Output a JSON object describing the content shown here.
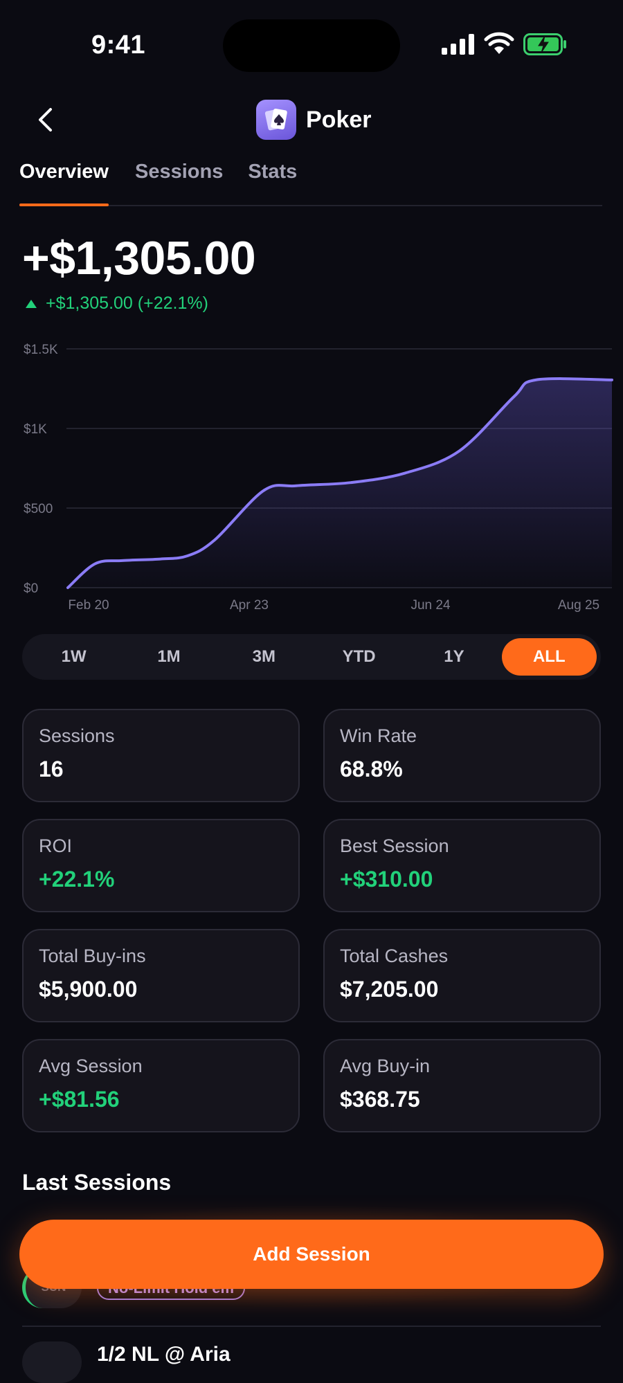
{
  "status_bar": {
    "time": "9:41"
  },
  "header": {
    "title": "Poker",
    "app_icon": "spade-cards-icon"
  },
  "tabs": [
    {
      "label": "Overview",
      "active": true
    },
    {
      "label": "Sessions",
      "active": false
    },
    {
      "label": "Stats",
      "active": false
    }
  ],
  "summary": {
    "total": "+$1,305.00",
    "change": "+$1,305.00 (+22.1%)"
  },
  "chart_data": {
    "type": "area",
    "x_labels": [
      "Feb 20",
      "Apr 23",
      "Jun 24",
      "Aug 25"
    ],
    "y_ticks": [
      "$0",
      "$500",
      "$1K",
      "$1.5K"
    ],
    "ylim": [
      0,
      1500
    ],
    "series": [
      {
        "color": "#8b7cf6",
        "points": [
          [
            0.0,
            0
          ],
          [
            0.05,
            150
          ],
          [
            0.1,
            170
          ],
          [
            0.17,
            180
          ],
          [
            0.22,
            200
          ],
          [
            0.27,
            300
          ],
          [
            0.36,
            610
          ],
          [
            0.42,
            640
          ],
          [
            0.52,
            660
          ],
          [
            0.62,
            720
          ],
          [
            0.72,
            860
          ],
          [
            0.82,
            1200
          ],
          [
            0.86,
            1305
          ],
          [
            1.0,
            1305
          ]
        ]
      }
    ],
    "grid": true
  },
  "ranges": [
    {
      "label": "1W",
      "active": false
    },
    {
      "label": "1M",
      "active": false
    },
    {
      "label": "3M",
      "active": false
    },
    {
      "label": "YTD",
      "active": false
    },
    {
      "label": "1Y",
      "active": false
    },
    {
      "label": "ALL",
      "active": true
    }
  ],
  "stats": [
    {
      "label": "Sessions",
      "value": "16",
      "positive": false
    },
    {
      "label": "Win Rate",
      "value": "68.8%",
      "positive": false
    },
    {
      "label": "ROI",
      "value": "+22.1%",
      "positive": true
    },
    {
      "label": "Best Session",
      "value": "+$310.00",
      "positive": true
    },
    {
      "label": "Total Buy-ins",
      "value": "$5,900.00",
      "positive": false
    },
    {
      "label": "Total Cashes",
      "value": "$7,205.00",
      "positive": false
    },
    {
      "label": "Avg Session",
      "value": "+$81.56",
      "positive": true
    },
    {
      "label": "Avg Buy-in",
      "value": "$368.75",
      "positive": false
    }
  ],
  "last_sessions": {
    "title": "Last Sessions",
    "items": [
      {
        "day": "SUN",
        "game": "No-Limit Hold’em"
      },
      {
        "title": "1/2 NL @ Aria"
      }
    ]
  },
  "add_session": {
    "label": "Add Session"
  },
  "colors": {
    "accent": "#ff6a1a",
    "positive": "#22d17a",
    "line": "#8b7cf6",
    "background": "#0b0b12"
  }
}
